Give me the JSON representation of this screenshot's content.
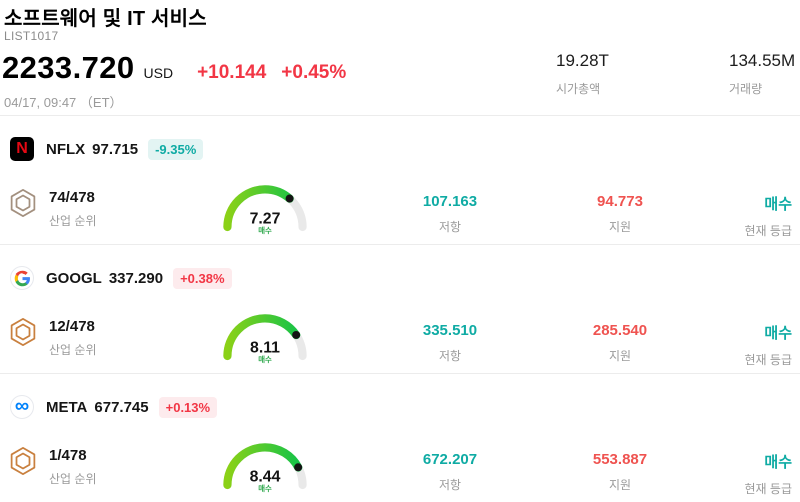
{
  "header": {
    "title": "소프트웨어 및 IT 서비스",
    "list_id": "LIST1017",
    "price": "2233.720",
    "currency": "USD",
    "change": "+10.144",
    "change_pct": "+0.45%",
    "datetime": "04/17, 09:47 （ET）",
    "market_cap": {
      "value": "19.28T",
      "label": "시가총액"
    },
    "volume": {
      "value": "134.55M",
      "label": "거래량"
    }
  },
  "labels": {
    "industry_rank": "산업 순위",
    "resistance": "저항",
    "support": "지원",
    "current_rating": "현재 등급"
  },
  "icons": {
    "netflix_glyph": "N",
    "meta_glyph": "∞",
    "rank_icon": "hexagon-badge-icon"
  },
  "colors": {
    "up_red": "#f23645",
    "down_teal": "#0faba4",
    "support_red": "#ef5350",
    "gauge_gradient_start": "#8bd117",
    "gauge_gradient_end": "#0fc24b"
  },
  "rows": [
    {
      "logo": "netflix",
      "ticker": "NFLX",
      "price": "97.715",
      "change_pct": "-9.35%",
      "change_dir": "down",
      "rank": "74/478",
      "hex_color": "#a3907f",
      "gauge": {
        "value": 7.27,
        "max": 10,
        "label": "매수"
      },
      "resistance": "107.163",
      "support": "94.773",
      "rating": "매수"
    },
    {
      "logo": "google",
      "ticker": "GOOGL",
      "price": "337.290",
      "change_pct": "+0.38%",
      "change_dir": "up",
      "rank": "12/478",
      "hex_color": "#c9803f",
      "gauge": {
        "value": 8.11,
        "max": 10,
        "label": "매수"
      },
      "resistance": "335.510",
      "support": "285.540",
      "rating": "매수"
    },
    {
      "logo": "meta",
      "ticker": "META",
      "price": "677.745",
      "change_pct": "+0.13%",
      "change_dir": "up",
      "rank": "1/478",
      "hex_color": "#c9803f",
      "gauge": {
        "value": 8.44,
        "max": 10,
        "label": "매수"
      },
      "resistance": "672.207",
      "support": "553.887",
      "rating": "매수"
    }
  ]
}
